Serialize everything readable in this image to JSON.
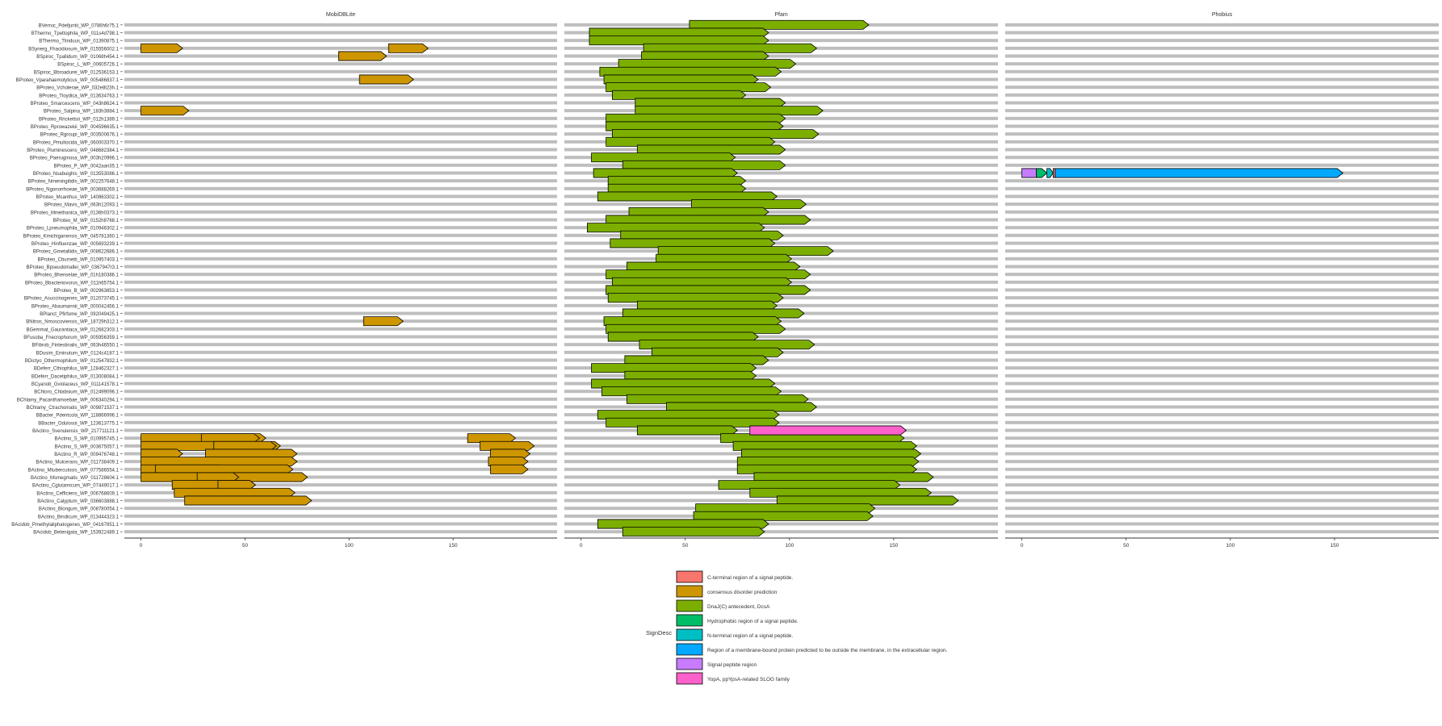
{
  "chart_data": {
    "type": "bar",
    "panels": [
      {
        "title": "MobiDBLite",
        "xticks": [
          0,
          50,
          100,
          150
        ]
      },
      {
        "title": "Pfam",
        "xticks": [
          0,
          50,
          100,
          150
        ]
      },
      {
        "title": "Phobius",
        "xticks": [
          0,
          50,
          100,
          150
        ]
      }
    ],
    "xlim": [
      -8,
      200
    ],
    "proteins": [
      "BVerruc_Pdefjuntii_WP_0786h6r75.1",
      "BThermo_Tpettophila_WP_011s4d798.1",
      "BThermo_Tlinduus_WP_01390875.1",
      "BSynerg_Fhacidiosum_WP_015556002.1",
      "BSpiroc_Tpallidum_WP_01068h454.1",
      "BSpiroc_L_WP_00605726.1",
      "BSpiroc_Bbroadurei_WP_012536153.1",
      "BProteo_Vparahaemolyticus_WP_005486837.1",
      "BProteo_Vcholerae_WP_032e8t23h.1",
      "BProteo_Tloydica_WP_013634763.1",
      "BProteo_Smarcescens_WP_043h8624.1",
      "BProteo_Salpina_WP_183h3884.1",
      "BProteo_Rrickettsii_WP_012h1389.1",
      "BProteo_Rprowazekii_WP_004596635.1",
      "BProteo_Rgroupi_WP_003500676.1",
      "BProteo_Pmultocida_WP_060003370.1",
      "BProteo_Pluminescens_WP_048682384.1",
      "BProteo_Paeruginosa_WP_003h20996.1",
      "BProteo_P_WP_0042aan35.1",
      "BProteo_Nsabuighis_WP_013553086.1",
      "BProteo_Nmeningitidis_WP_002257648.1",
      "BProteo_Ngonorrhoeae_WP_003688269.1",
      "BProteo_Mcanthus_WP_140863302.1",
      "BProteo_Mavis_WP_063h12093.1",
      "BProteo_Mmethanica_WP_0136h0373.1",
      "BProteo_M_WP_0152h8768.1",
      "BProteo_Lpneumophila_WP_010946302.1",
      "BProteo_Kmichiganensis_WP_045781360.1",
      "BProteo_Hinfluenzae_WP_005693239.1",
      "BProteo_Gmetallidis_WP_008622686.1",
      "BProteo_Cburnetii_WP_010957403.1",
      "BProteo_Bpseudomallei_WP_0367947r3.1",
      "BProteo_Bhenselae_WP_01h180386.1",
      "BProteo_Bbacteriovorus_WP_011h65754.1",
      "BProteo_B_WP_002963653.1",
      "BProteo_Asuccinogenes_WP_012073745.1",
      "BProteo_Abaumannii_WP_000042456.1",
      "BPlanct_Pfirfome_WP_092049425.1",
      "BNitros_Nmoscoviensis_WP_18729h312.1",
      "BGemmat_Gaurantiaca_WP_012682303.1",
      "BFusoba_Fnecrophorum_WP_005956359.1",
      "BFibrob_Fintestinalis_WP_063h46550.1",
      "BDusim_Eminutum_WP_0124c4187.1",
      "BDictyo_Dthermophilum_WP_012547832.1",
      "BDeferr_Cthiophilus_WP_128462327.1",
      "BDeferr_Dacetiphilus_WP_013008084.1",
      "BCyanob_Gviolaceus_WP_011141578.1",
      "BChloro_Chlabsium_WP_012499096.1",
      "BChlamy_Pacanthamoebae_WP_006340294.1",
      "BChlamy_Ctrachomatis_WP_009871537.1",
      "BBacter_Pdentcola_WP_118866996.1",
      "BBacter_Odulosoi_WP_123613775.1",
      "BActino_Svenulensis_WP_217711121.1",
      "BActino_S_WP_010995745.1",
      "BActino_S_WP_003675057.1",
      "BActino_R_WP_009476748.1",
      "BActino_Mulcerans_WP_011738409.1",
      "BActino_Mtuberculosis_WP_077586554.1",
      "BActino_Msmegmatis_WP_011728604.1",
      "BActino_Cglutamicum_WP_07449017.1",
      "BActino_Cefficiens_WP_006768609.1",
      "BActino_Calyptum_WP_036603888.1",
      "BActino_Blongum_WP_008780054.1",
      "BActino_Bindicum_WP_013444323.1",
      "BAcidob_Pmethylaliphatogenes_WP_04167851.1",
      "BAcidob_Betenigata_WP_153922489.1"
    ],
    "mobidb_segments": [
      [
        3,
        0,
        20,
        true
      ],
      [
        3,
        119,
        138,
        true
      ],
      [
        4,
        95,
        118,
        true
      ],
      [
        7,
        105,
        131,
        true
      ],
      [
        11,
        0,
        23,
        true
      ],
      [
        38,
        107,
        126,
        true
      ],
      [
        53,
        0,
        60,
        true
      ],
      [
        53,
        29,
        57,
        true
      ],
      [
        53,
        157,
        180,
        true
      ],
      [
        54,
        0,
        67,
        true
      ],
      [
        54,
        35,
        65,
        true
      ],
      [
        54,
        163,
        189,
        true
      ],
      [
        55,
        0,
        20,
        true
      ],
      [
        55,
        31,
        75,
        true
      ],
      [
        55,
        168,
        187,
        true
      ],
      [
        56,
        0,
        75,
        true
      ],
      [
        56,
        167,
        186,
        true
      ],
      [
        57,
        0,
        40,
        true
      ],
      [
        57,
        7,
        73,
        true
      ],
      [
        57,
        168,
        186,
        true
      ],
      [
        58,
        0,
        80,
        true
      ],
      [
        58,
        27,
        47,
        true
      ],
      [
        59,
        15,
        55,
        true
      ],
      [
        59,
        37,
        55,
        true
      ],
      [
        60,
        16,
        74,
        true
      ],
      [
        61,
        21,
        82,
        true
      ]
    ],
    "pfam_segments": [
      [
        0,
        52,
        138,
        true
      ],
      [
        1,
        4,
        90,
        true
      ],
      [
        2,
        4,
        90,
        true
      ],
      [
        3,
        30,
        113,
        true
      ],
      [
        4,
        29,
        90,
        true
      ],
      [
        5,
        18,
        103,
        true
      ],
      [
        6,
        9,
        96,
        true
      ],
      [
        7,
        11,
        85,
        true
      ],
      [
        8,
        12,
        91,
        true
      ],
      [
        9,
        15,
        79,
        true
      ],
      [
        10,
        26,
        98,
        true
      ],
      [
        11,
        26,
        116,
        true
      ],
      [
        12,
        12,
        98,
        true
      ],
      [
        13,
        12,
        97,
        true
      ],
      [
        14,
        15,
        114,
        true
      ],
      [
        15,
        12,
        93,
        true
      ],
      [
        16,
        27,
        98,
        true
      ],
      [
        17,
        5,
        74,
        true
      ],
      [
        18,
        20,
        98,
        true
      ],
      [
        19,
        6,
        75,
        true
      ],
      [
        20,
        13,
        79,
        true
      ],
      [
        21,
        13,
        79,
        true
      ],
      [
        22,
        8,
        94,
        true
      ],
      [
        23,
        53,
        108,
        true
      ],
      [
        24,
        23,
        90,
        true
      ],
      [
        25,
        12,
        110,
        true
      ],
      [
        26,
        3,
        88,
        true
      ],
      [
        27,
        19,
        97,
        true
      ],
      [
        28,
        14,
        93,
        true
      ],
      [
        29,
        37,
        121,
        true
      ],
      [
        30,
        36,
        101,
        true
      ],
      [
        31,
        22,
        105,
        true
      ],
      [
        32,
        12,
        110,
        true
      ],
      [
        33,
        15,
        101,
        true
      ],
      [
        34,
        12,
        110,
        true
      ],
      [
        35,
        13,
        97,
        true
      ],
      [
        36,
        27,
        94,
        true
      ],
      [
        37,
        20,
        107,
        true
      ],
      [
        38,
        11,
        96,
        true
      ],
      [
        39,
        12,
        98,
        true
      ],
      [
        40,
        13,
        85,
        true
      ],
      [
        41,
        28,
        112,
        true
      ],
      [
        42,
        34,
        97,
        true
      ],
      [
        43,
        21,
        90,
        true
      ],
      [
        44,
        5,
        84,
        true
      ],
      [
        45,
        21,
        84,
        true
      ],
      [
        46,
        5,
        93,
        true
      ],
      [
        47,
        10,
        96,
        true
      ],
      [
        48,
        22,
        109,
        true
      ],
      [
        49,
        41,
        113,
        true
      ],
      [
        50,
        8,
        95,
        true
      ],
      [
        51,
        12,
        95,
        true
      ],
      [
        52,
        27,
        75,
        true
      ],
      [
        53,
        67,
        155,
        true
      ],
      [
        54,
        73,
        161,
        true
      ],
      [
        55,
        77,
        163,
        true
      ],
      [
        56,
        75,
        162,
        true
      ],
      [
        57,
        75,
        161,
        true
      ],
      [
        58,
        83,
        169,
        true
      ],
      [
        59,
        66,
        153,
        true
      ],
      [
        60,
        81,
        168,
        true
      ],
      [
        61,
        94,
        181,
        true
      ],
      [
        62,
        55,
        141,
        true
      ],
      [
        63,
        54,
        140,
        true
      ],
      [
        64,
        8,
        90,
        true
      ],
      [
        65,
        20,
        88,
        true
      ]
    ],
    "pfam_extra_segments": [
      [
        52,
        81,
        156,
        true
      ]
    ],
    "phobius_segments": [
      [
        19,
        0,
        7,
        false
      ],
      [
        19,
        7,
        12,
        true
      ],
      [
        19,
        12,
        15,
        true
      ],
      [
        19,
        15,
        16,
        false
      ],
      [
        19,
        16,
        154,
        true
      ]
    ],
    "legend": {
      "title": "SignDesc",
      "items": [
        {
          "label": "C-terminal region of a signal peptide.",
          "color": "#F8766D"
        },
        {
          "label": "consensus disorder prediction",
          "color": "#CD9600"
        },
        {
          "label": "DnaJ(C) antecedent, DcsA",
          "color": "#7CAE00"
        },
        {
          "label": "Hydrophobic region of a signal peptide.",
          "color": "#00BE67"
        },
        {
          "label": "N-terminal region of a signal peptide.",
          "color": "#00BFC4"
        },
        {
          "label": "Region of a membrane-bound protein predicted to be outside the membrane, in the extracellular region.",
          "color": "#00A9FF"
        },
        {
          "label": "Signal peptide region",
          "color": "#C77CFF"
        },
        {
          "label": "YopA, ppYpsA-related SLOG family",
          "color": "#FF61CC"
        }
      ]
    },
    "phobius_colors": [
      "#C77CFF",
      "#00BE67",
      "#00BFC4",
      "#F8766D",
      "#00A9FF"
    ],
    "grid": true
  }
}
